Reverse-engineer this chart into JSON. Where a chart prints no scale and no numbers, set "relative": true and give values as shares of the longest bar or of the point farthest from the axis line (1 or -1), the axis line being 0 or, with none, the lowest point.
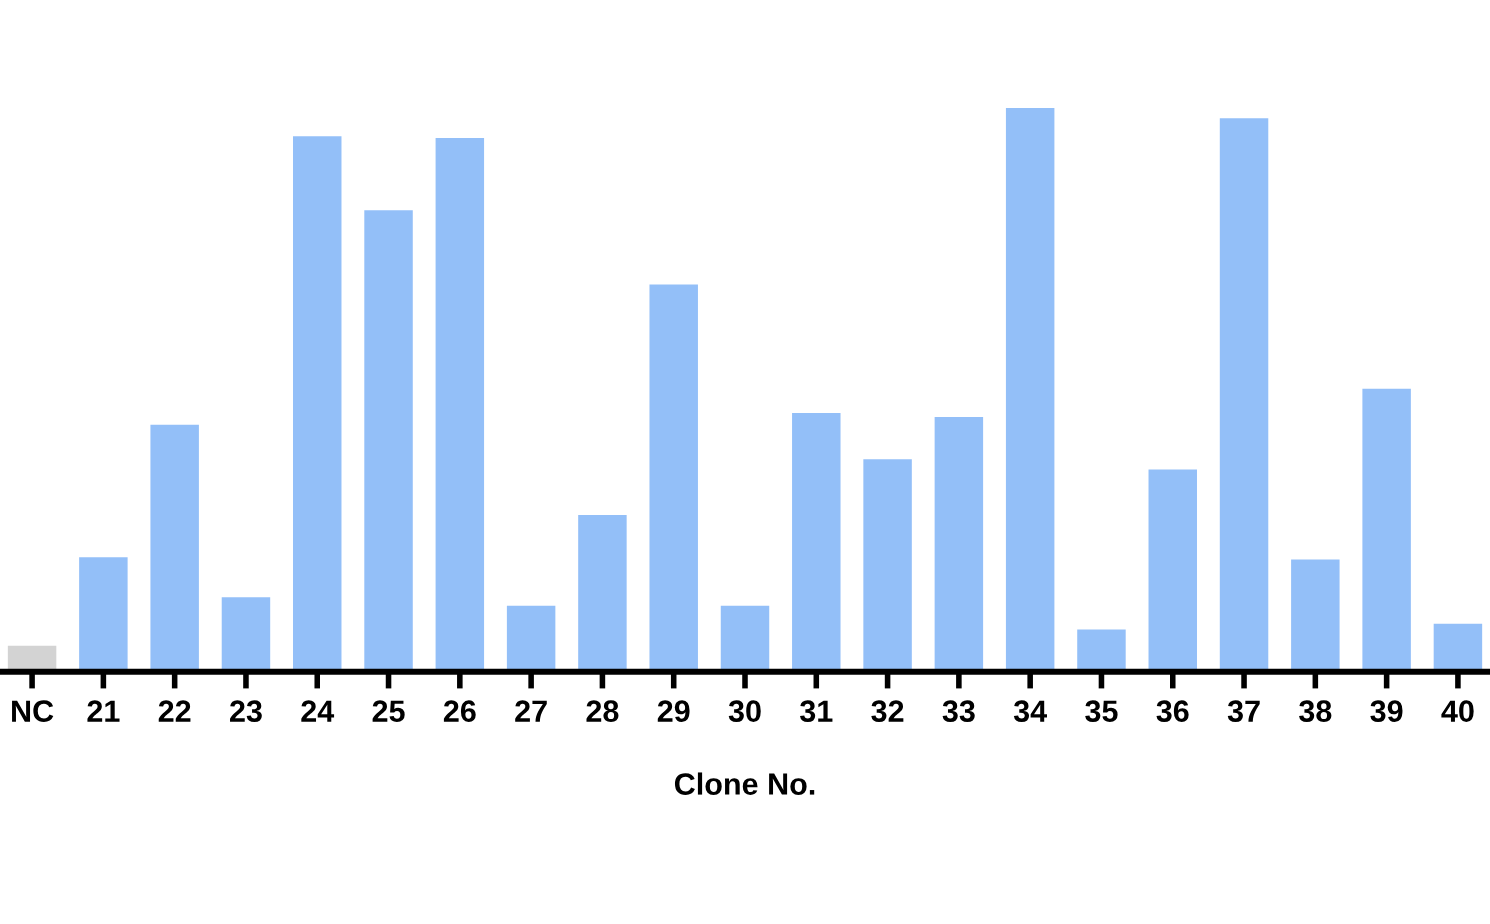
{
  "chart_data": {
    "type": "bar",
    "xlabel": "Clone No.",
    "relative": true,
    "categories": [
      "NC",
      "21",
      "22",
      "23",
      "24",
      "25",
      "26",
      "27",
      "28",
      "29",
      "30",
      "31",
      "32",
      "33",
      "34",
      "35",
      "36",
      "37",
      "38",
      "39",
      "40"
    ],
    "values": [
      0.046,
      0.203,
      0.438,
      0.132,
      0.95,
      0.819,
      0.947,
      0.117,
      0.278,
      0.687,
      0.117,
      0.459,
      0.377,
      0.452,
      1,
      0.075,
      0.359,
      0.982,
      0.199,
      0.502,
      0.085
    ],
    "colors": [
      "#d3d3d3",
      "#93bff8",
      "#93bff8",
      "#93bff8",
      "#93bff8",
      "#93bff8",
      "#93bff8",
      "#93bff8",
      "#93bff8",
      "#93bff8",
      "#93bff8",
      "#93bff8",
      "#93bff8",
      "#93bff8",
      "#93bff8",
      "#93bff8",
      "#93bff8",
      "#93bff8",
      "#93bff8",
      "#93bff8",
      "#93bff8"
    ],
    "grid": false,
    "legend": false
  }
}
